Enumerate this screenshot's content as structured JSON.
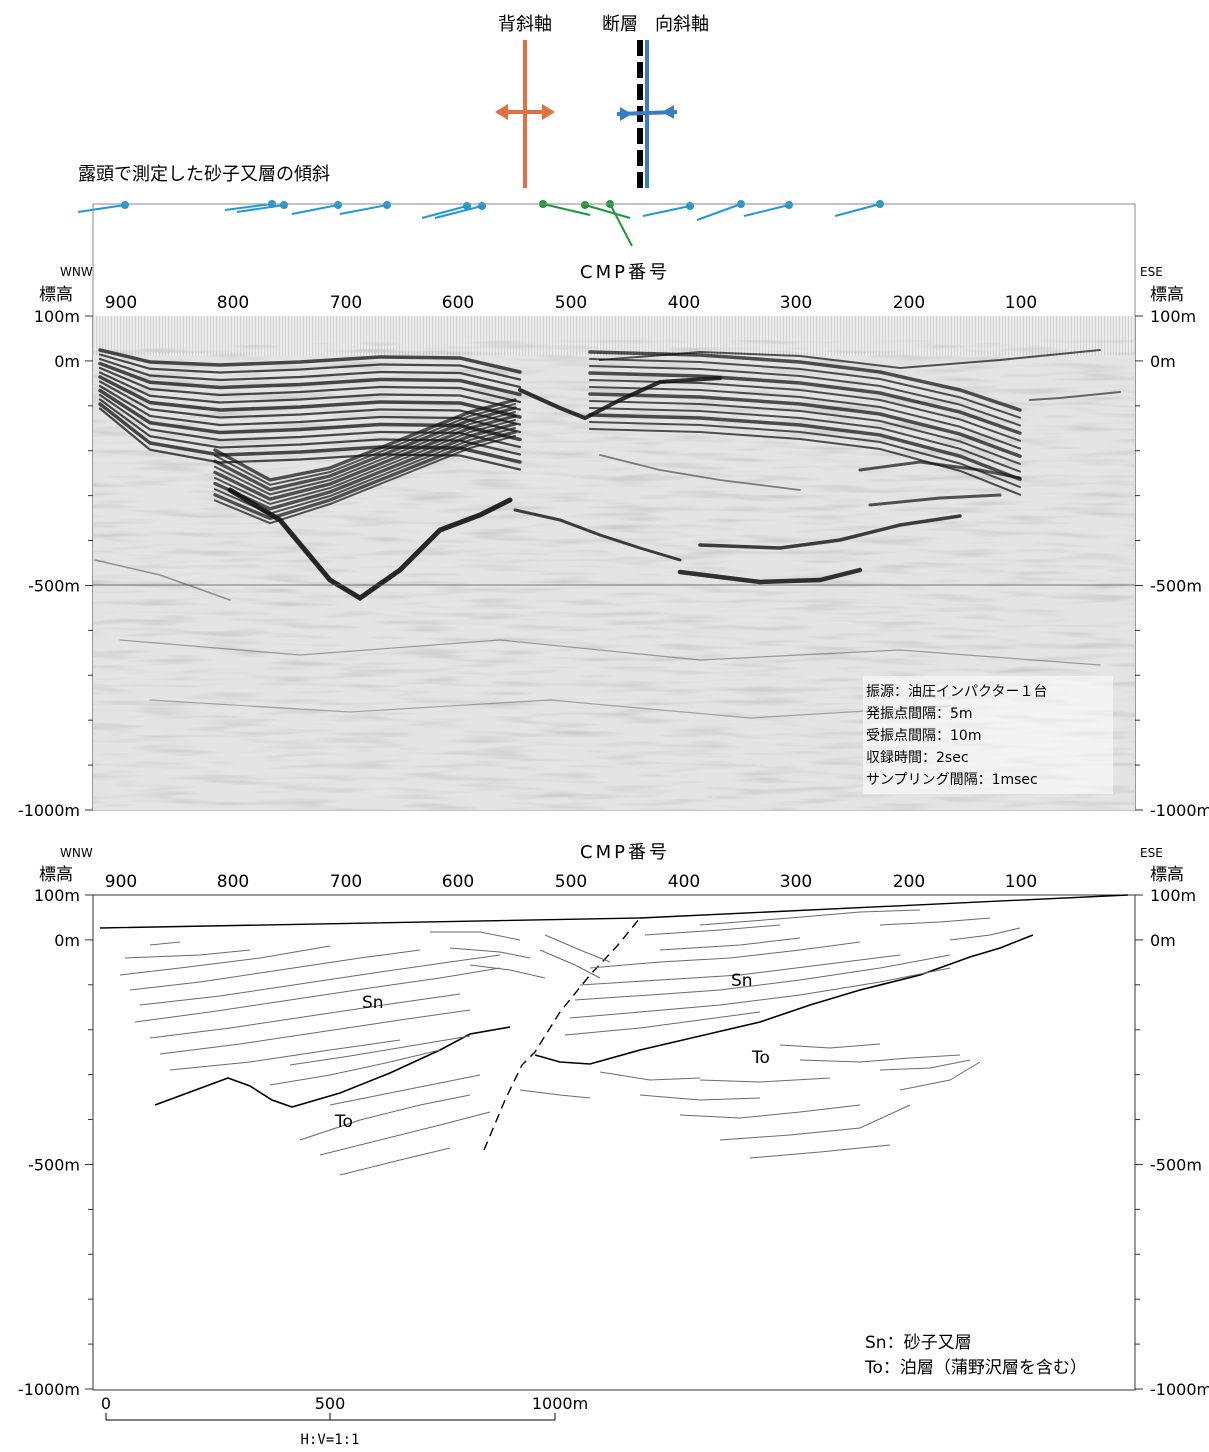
{
  "header": {
    "anticline_label": "背斜軸",
    "fault_label": "断層",
    "syncline_label": "向斜軸",
    "dip_title": "露頭で測定した砂子又層の傾斜",
    "colors": {
      "anticline": "#e07040",
      "syncline": "#3a7cc0",
      "dip_blue": "#1f9ad6",
      "dip_green": "#1a9a3a"
    }
  },
  "seismic_panel": {
    "cmp_title": "CMP番号",
    "left_direction": "WNW",
    "right_direction": "ESE",
    "elevation_label_left": "標高",
    "elevation_label_right": "標高",
    "cmp_ticks": [
      "900",
      "800",
      "700",
      "600",
      "500",
      "400",
      "300",
      "200",
      "100"
    ],
    "elevation_ticks": [
      "100m",
      "0m",
      "-500m",
      "-1000m"
    ],
    "acquisition": {
      "source": "振源：油圧インパクター１台",
      "shot_interval": "発振点間隔：5m",
      "receiver_interval": "受振点間隔：10m",
      "record_length": "収録時間：2sec",
      "sample_interval": "サンプリング間隔：1msec"
    }
  },
  "interpretation_panel": {
    "cmp_title": "CMP番号",
    "left_direction": "WNW",
    "right_direction": "ESE",
    "elevation_label_left": "標高",
    "elevation_label_right": "標高",
    "cmp_ticks": [
      "900",
      "800",
      "700",
      "600",
      "500",
      "400",
      "300",
      "200",
      "100"
    ],
    "elevation_ticks": [
      "100m",
      "0m",
      "-500m",
      "-1000m"
    ],
    "unit_labels": {
      "sn_west": "Sn",
      "sn_east": "Sn",
      "to_west": "To",
      "to_east": "To"
    },
    "legend": {
      "sn": "Sn：砂子又層",
      "to": "To：泊層（蒲野沢層を含む）"
    }
  },
  "scale_bar": {
    "ticks": [
      "0",
      "500",
      "1000m"
    ],
    "ratio": "H:V=1:1"
  }
}
